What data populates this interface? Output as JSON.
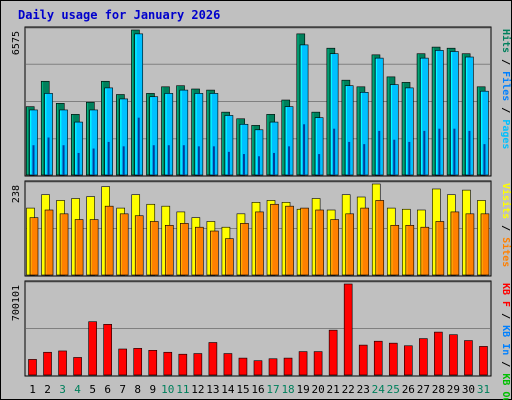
{
  "chart_data": {
    "type": "bar",
    "title": "Daily usage for January 2026",
    "categories": [
      "1",
      "2",
      "3",
      "4",
      "5",
      "6",
      "7",
      "8",
      "9",
      "10",
      "11",
      "12",
      "13",
      "14",
      "15",
      "16",
      "17",
      "18",
      "19",
      "20",
      "21",
      "22",
      "23",
      "24",
      "25",
      "26",
      "27",
      "28",
      "29",
      "30",
      "31"
    ],
    "weekend_days": [
      "3",
      "4",
      "10",
      "11",
      "17",
      "18",
      "24",
      "25",
      "31"
    ],
    "colors": {
      "hits": "#00805c",
      "files": "#00c0ff",
      "pages": "#00409c",
      "visits": "#ffff00",
      "sites": "#ff8000",
      "kbin": "#0080ff",
      "kbout": "#00c000",
      "kbf": "#ff0000",
      "weekday_label": "#000000",
      "weekend_label": "#00805c"
    },
    "panels": [
      {
        "name": "hits-files-pages",
        "ymax_label": "6575",
        "ymax": 6575,
        "legend": [
          {
            "text": "Hits",
            "color": "#00805c"
          },
          {
            "text": " / ",
            "color": "#000000"
          },
          {
            "text": "Files",
            "color": "#0080ff"
          },
          {
            "text": " / ",
            "color": "#000000"
          },
          {
            "text": "Pages",
            "color": "#00c0ff"
          }
        ],
        "series": [
          {
            "name": "Hits",
            "values": [
              3100,
              4250,
              3250,
              2750,
              3300,
              4250,
              3650,
              6575,
              3700,
              4000,
              4050,
              3900,
              3850,
              2850,
              2550,
              2250,
              2750,
              3400,
              6400,
              2850,
              5750,
              4300,
              4000,
              5450,
              4450,
              4200,
              5500,
              5800,
              5750,
              5500,
              4000
            ]
          },
          {
            "name": "Files",
            "values": [
              2950,
              3700,
              2950,
              2400,
              2950,
              3950,
              3450,
              6400,
              3550,
              3700,
              3850,
              3700,
              3700,
              2700,
              2300,
              2050,
              2400,
              3100,
              5900,
              2600,
              5500,
              4050,
              3750,
              5300,
              4100,
              3950,
              5300,
              5650,
              5600,
              5350,
              3800
            ]
          },
          {
            "name": "Pages",
            "values": [
              1350,
              1700,
              1350,
              1000,
              1200,
              1500,
              1300,
              2600,
              1350,
              1350,
              1350,
              1300,
              1300,
              1050,
              950,
              850,
              1000,
              1300,
              2300,
              950,
              2100,
              1500,
              1400,
              2000,
              1600,
              1500,
              2000,
              2100,
              2100,
              2000,
              1400
            ]
          }
        ]
      },
      {
        "name": "visits-sites",
        "ymax_label": "238",
        "ymax": 238,
        "legend": [
          {
            "text": "Visits",
            "color": "#ffff00"
          },
          {
            "text": " / ",
            "color": "#000000"
          },
          {
            "text": "Sites",
            "color": "#ff8000"
          }
        ],
        "series": [
          {
            "name": "Visits",
            "values": [
              175,
              210,
              195,
              200,
              205,
              231,
              175,
              210,
              185,
              180,
              165,
              150,
              140,
              125,
              160,
              190,
              195,
              190,
              172,
              200,
              170,
              210,
              204,
              238,
              175,
              172,
              170,
              225,
              210,
              222,
              195
            ]
          },
          {
            "name": "Sites",
            "values": [
              150,
              170,
              160,
              145,
              145,
              180,
              160,
              155,
              140,
              130,
              135,
              125,
              115,
              95,
              135,
              165,
              185,
              180,
              175,
              170,
              145,
              160,
              175,
              195,
              130,
              130,
              125,
              140,
              165,
              160,
              160
            ]
          }
        ]
      },
      {
        "name": "kbytes",
        "ymax_label": "700101",
        "ymax": 700101,
        "legend": [
          {
            "text": "KB F",
            "color": "#ff0000"
          },
          {
            "text": " / ",
            "color": "#000000"
          },
          {
            "text": "KB In",
            "color": "#0080ff"
          },
          {
            "text": " / ",
            "color": "#000000"
          },
          {
            "text": "KB Out",
            "color": "#00c000"
          }
        ],
        "series": [
          {
            "name": "KB F",
            "values": [
              120000,
              175000,
              185000,
              135000,
              410000,
              390000,
              200000,
              205000,
              190000,
              175000,
              160000,
              165000,
              250000,
              165000,
              130000,
              110000,
              125000,
              130000,
              180000,
              180000,
              345000,
              700101,
              230000,
              260000,
              245000,
              225000,
              280000,
              330000,
              310000,
              265000,
              220000
            ]
          }
        ]
      }
    ]
  }
}
